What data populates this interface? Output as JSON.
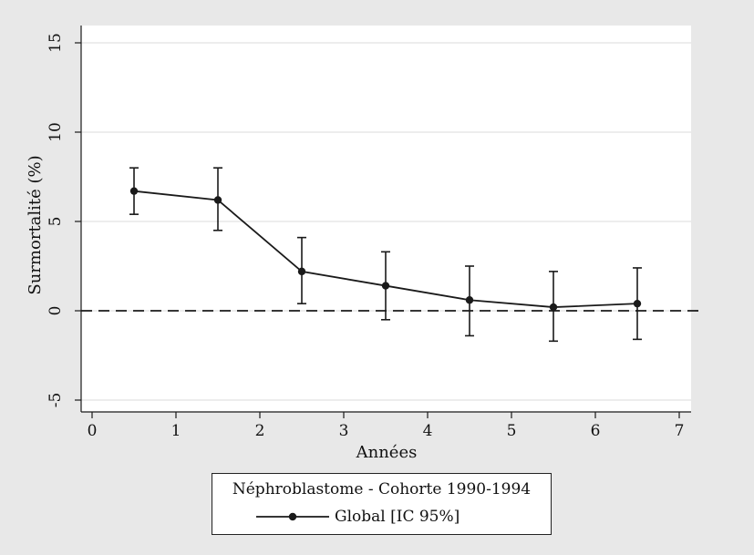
{
  "colors": {
    "background": "#e8e8e8",
    "plot_background": "#ffffff",
    "grid": "#e2e2e2",
    "series": "#1a1a1a",
    "reference_line": "#1a1a1a"
  },
  "chart_data": {
    "type": "line",
    "title": "",
    "xlabel": "Années",
    "ylabel": "Surmortalité (%)",
    "xlim": [
      0,
      7
    ],
    "ylim": [
      -5,
      15
    ],
    "x_ticks": [
      0,
      1,
      2,
      3,
      4,
      5,
      6,
      7
    ],
    "y_ticks": [
      -5,
      0,
      5,
      10,
      15
    ],
    "grid": "horizontal",
    "reference_line": {
      "y": 0,
      "style": "dashed"
    },
    "series": [
      {
        "name": "Global [IC 95%]",
        "marker": "circle",
        "x": [
          0.5,
          1.5,
          2.5,
          3.5,
          4.5,
          5.5,
          6.5
        ],
        "y": [
          6.7,
          6.2,
          2.2,
          1.4,
          0.6,
          0.2,
          0.4
        ],
        "ci_lower": [
          5.4,
          4.5,
          0.4,
          -0.5,
          -1.4,
          -1.7,
          -1.6
        ],
        "ci_upper": [
          8.0,
          8.0,
          4.1,
          3.3,
          2.5,
          2.2,
          2.4
        ]
      }
    ],
    "legend": {
      "title": "Néphroblastome - Cohorte 1990-1994",
      "position": "bottom-center"
    }
  }
}
